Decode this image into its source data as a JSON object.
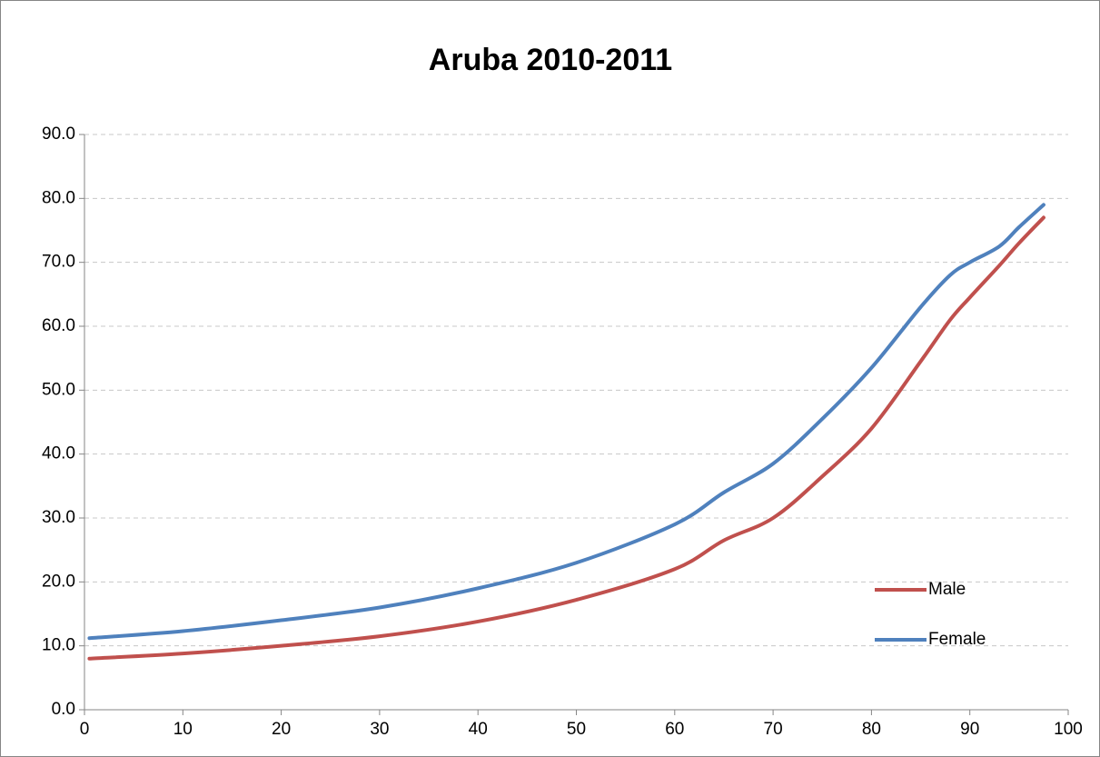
{
  "chart_data": {
    "type": "line",
    "title": "Aruba 2010-2011",
    "x": [
      0.5,
      10,
      20,
      30,
      40,
      50,
      60,
      65,
      70,
      75,
      80,
      85,
      88,
      90,
      93,
      95,
      97.5
    ],
    "series": [
      {
        "name": "Male",
        "color": "#c0504d",
        "values": [
          8.0,
          8.8,
          10.0,
          11.5,
          13.8,
          17.2,
          22.0,
          26.5,
          30.0,
          36.5,
          44.0,
          54.5,
          61.0,
          64.5,
          69.5,
          73.0,
          77.0
        ]
      },
      {
        "name": "Female",
        "color": "#4f81bd",
        "values": [
          11.2,
          12.3,
          14.0,
          16.0,
          19.0,
          23.0,
          29.0,
          34.0,
          38.5,
          45.5,
          53.5,
          63.0,
          68.0,
          70.0,
          72.5,
          75.5,
          79.0
        ]
      }
    ],
    "xlim": [
      0,
      100
    ],
    "xticks": [
      0,
      10,
      20,
      30,
      40,
      50,
      60,
      70,
      80,
      90,
      100
    ],
    "ylim": [
      0,
      90
    ],
    "yticks": [
      {
        "value": 0,
        "label": "0.0"
      },
      {
        "value": 10,
        "label": "10.0"
      },
      {
        "value": 20,
        "label": "20.0"
      },
      {
        "value": 30,
        "label": "30.0"
      },
      {
        "value": 40,
        "label": "40.0"
      },
      {
        "value": 50,
        "label": "50.0"
      },
      {
        "value": 60,
        "label": "60.0"
      },
      {
        "value": 70,
        "label": "70.0"
      },
      {
        "value": 80,
        "label": "80.0"
      },
      {
        "value": 90,
        "label": "90.0"
      }
    ],
    "grid": true,
    "legend": "right"
  }
}
